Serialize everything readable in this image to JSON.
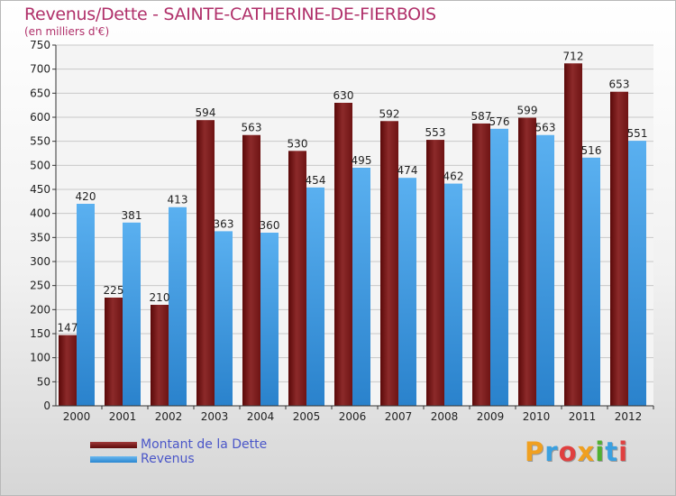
{
  "header": {
    "title": "Revenus/Dette - SAINTE-CATHERINE-DE-FIERBOIS",
    "subtitle": "(en milliers d'€)"
  },
  "chart_data": {
    "type": "bar",
    "title": "Revenus/Dette - SAINTE-CATHERINE-DE-FIERBOIS",
    "ylabel": "(en milliers d'€)",
    "xlabel": "",
    "ylim": [
      0,
      750
    ],
    "ytick_step": 50,
    "grid": true,
    "legend_position": "bottom-left",
    "categories": [
      "2000",
      "2001",
      "2002",
      "2003",
      "2004",
      "2005",
      "2006",
      "2007",
      "2008",
      "2009",
      "2010",
      "2011",
      "2012"
    ],
    "series": [
      {
        "name": "Montant de la Dette",
        "color": "#7a1a1a",
        "values": [
          147,
          225,
          210,
          594,
          563,
          530,
          630,
          592,
          553,
          587,
          599,
          712,
          653
        ]
      },
      {
        "name": "Revenus",
        "color": "#4aa3e8",
        "values": [
          420,
          381,
          413,
          363,
          360,
          454,
          495,
          474,
          462,
          576,
          563,
          516,
          551
        ]
      }
    ]
  },
  "legend": {
    "items": [
      {
        "label": "Montant de la Dette"
      },
      {
        "label": "Revenus"
      }
    ]
  },
  "logo": {
    "letters": [
      "P",
      "r",
      "o",
      "x",
      "i",
      "t",
      "i"
    ],
    "colors": [
      "#f0a020",
      "#3aa0e0",
      "#e04040",
      "#f0a020",
      "#50b030",
      "#3aa0e0",
      "#e04040"
    ]
  }
}
